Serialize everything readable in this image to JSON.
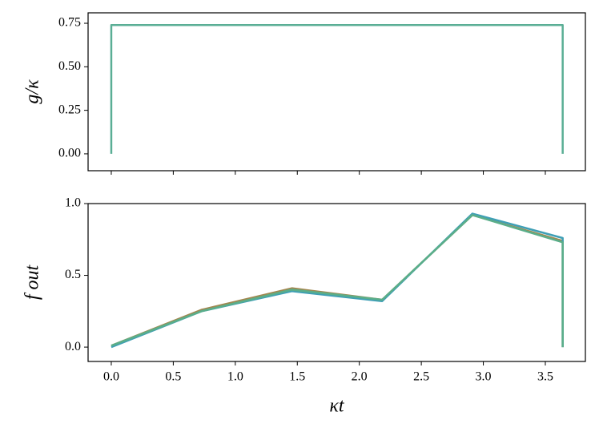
{
  "chart_data": [
    {
      "type": "line",
      "ylabel": "g/κ",
      "x": [
        0,
        0,
        3.64,
        3.64
      ],
      "series": [
        {
          "color": "#5aae95",
          "values": [
            0,
            0.74,
            0.74,
            0
          ]
        }
      ],
      "xlim": [
        -0.187,
        3.823
      ],
      "ylim": [
        -0.097,
        0.81
      ],
      "yticks": [
        {
          "value": 0,
          "label": "0.00"
        },
        {
          "value": 0.25,
          "label": "0.25"
        },
        {
          "value": 0.5,
          "label": "0.50"
        },
        {
          "value": 0.75,
          "label": "0.75"
        }
      ]
    },
    {
      "type": "line",
      "ylabel": "f out",
      "xlabel": "κt",
      "x": [
        0,
        0.728,
        1.456,
        2.184,
        2.912,
        3.64,
        3.64
      ],
      "series": [
        {
          "color": "#a08850",
          "values": [
            0.01,
            0.26,
            0.41,
            0.33,
            0.92,
            0.74,
            0
          ]
        },
        {
          "color": "#3f9fb5",
          "values": [
            0.0,
            0.25,
            0.39,
            0.32,
            0.93,
            0.76,
            0
          ]
        },
        {
          "color": "#5aae8a",
          "values": [
            0.01,
            0.25,
            0.4,
            0.33,
            0.92,
            0.73,
            0
          ]
        }
      ],
      "xlim": [
        -0.187,
        3.823
      ],
      "ylim": [
        -0.1,
        1.0
      ],
      "xticks": [
        {
          "value": 0,
          "label": "0.0"
        },
        {
          "value": 0.5,
          "label": "0.5"
        },
        {
          "value": 1,
          "label": "1.0"
        },
        {
          "value": 1.5,
          "label": "1.5"
        },
        {
          "value": 2,
          "label": "2.0"
        },
        {
          "value": 2.5,
          "label": "2.5"
        },
        {
          "value": 3,
          "label": "3.0"
        },
        {
          "value": 3.5,
          "label": "3.5"
        }
      ],
      "yticks": [
        {
          "value": 0,
          "label": "0.0"
        },
        {
          "value": 0.5,
          "label": "0.5"
        },
        {
          "value": 1,
          "label": "1.0"
        }
      ]
    }
  ]
}
